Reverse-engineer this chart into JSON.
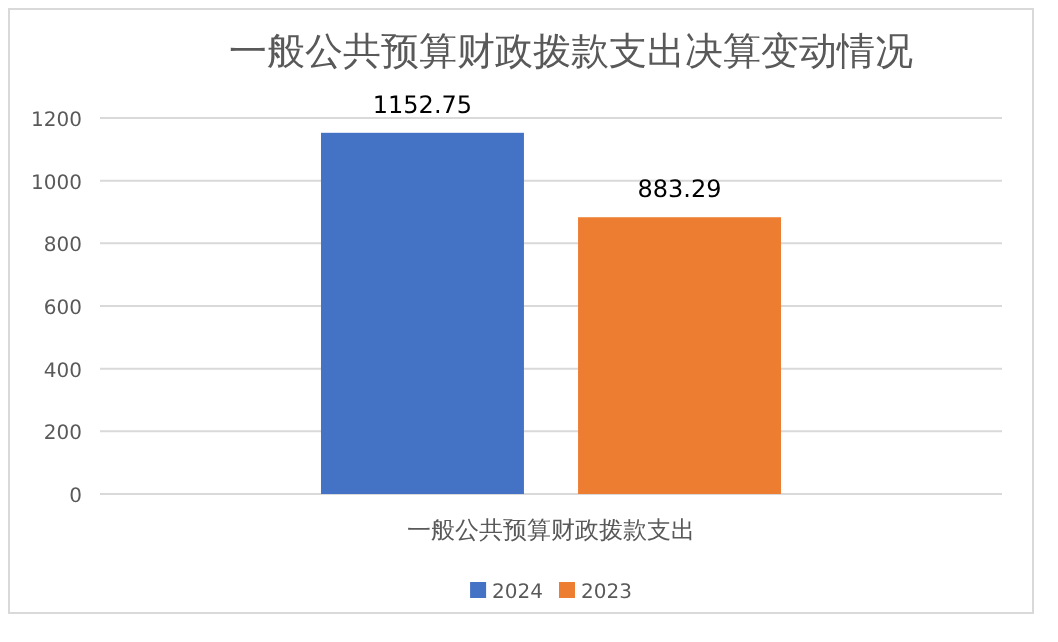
{
  "chart_data": {
    "type": "bar",
    "title": "一般公共预算财政拨款支出决算变动情况",
    "categories": [
      "一般公共预算财政拨款支出"
    ],
    "series": [
      {
        "name": "2024",
        "color": "#4472c4",
        "values": [
          1152.75
        ]
      },
      {
        "name": "2023",
        "color": "#ed7d31",
        "values": [
          883.29
        ]
      }
    ],
    "ylim": [
      0,
      1200
    ],
    "yticks": [
      0,
      200,
      400,
      600,
      800,
      1000,
      1200
    ],
    "grid": "y",
    "legend": "bottom",
    "data_labels": true
  }
}
